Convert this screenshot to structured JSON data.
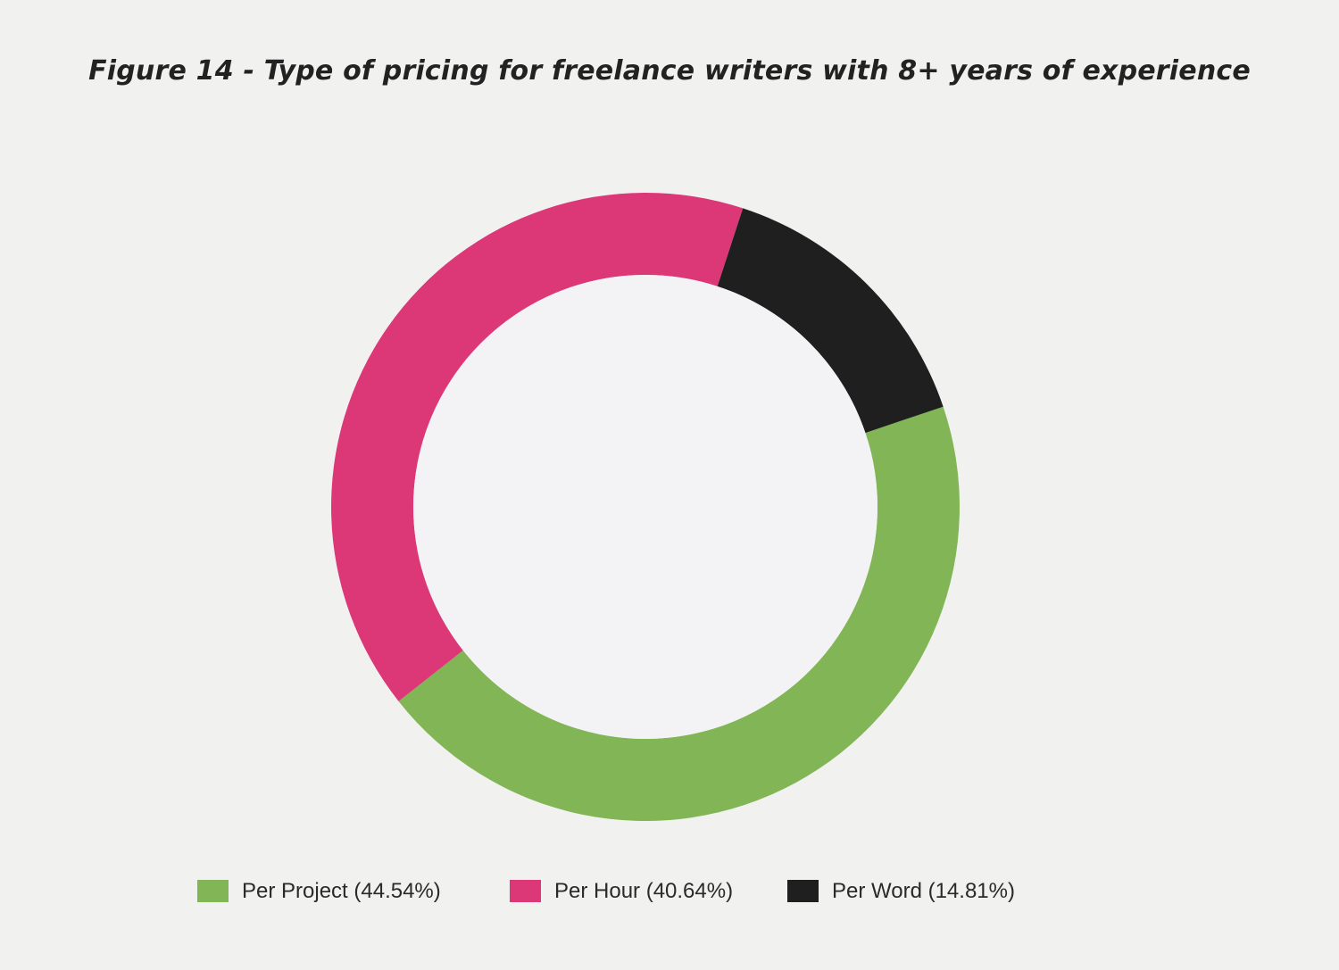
{
  "title": "Figure 14 - Type of pricing for freelance writers with 8+ years of experience",
  "chart_data": {
    "type": "pie",
    "donut": true,
    "title": "Figure 14 - Type of pricing for freelance writers with 8+ years of experience",
    "legend_position": "bottom",
    "categories": [
      "Per Project",
      "Per Hour",
      "Per Word"
    ],
    "values": [
      44.54,
      40.64,
      14.81
    ],
    "unit": "%",
    "colors": [
      "#82b555",
      "#dc3878",
      "#201f20"
    ],
    "legend_labels": [
      "Per Project (44.54%)",
      "Per Hour (40.64%)",
      "Per Word (14.81%)"
    ]
  }
}
